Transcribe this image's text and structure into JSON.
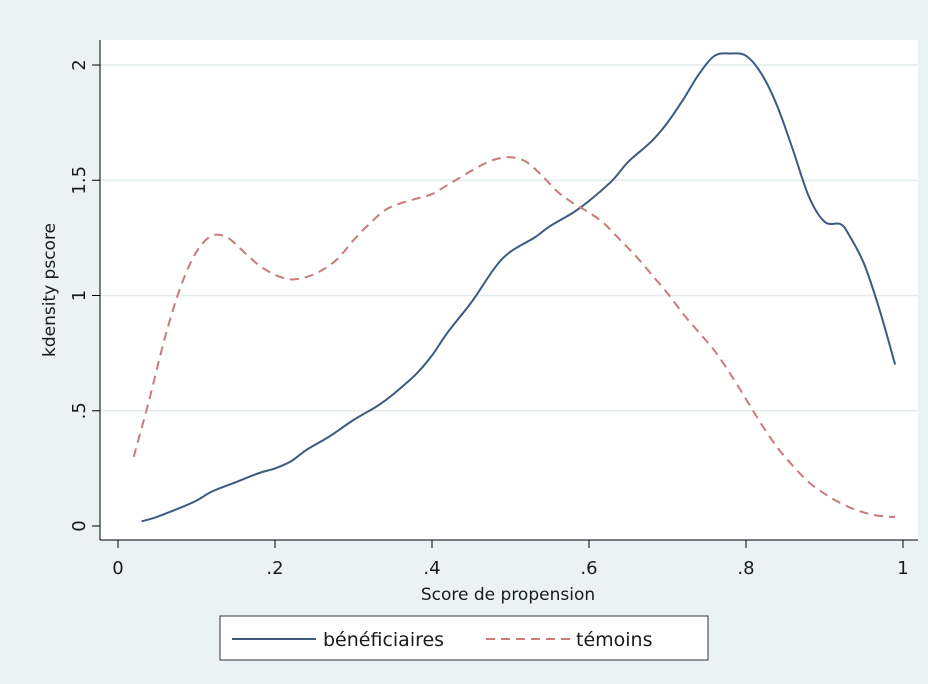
{
  "chart_data": {
    "type": "line",
    "xlabel": "Score de propension",
    "ylabel": "kdensity pscore",
    "xlim": [
      0,
      1
    ],
    "ylim": [
      0,
      2.1
    ],
    "xticks": [
      0,
      0.2,
      0.4,
      0.6,
      0.8,
      1
    ],
    "xtick_labels": [
      "0",
      ".2",
      ".4",
      ".6",
      ".8",
      "1"
    ],
    "yticks": [
      0,
      0.5,
      1,
      1.5,
      2
    ],
    "ytick_labels": [
      "0",
      ".5",
      "1",
      "1.5",
      "2"
    ],
    "grid": true,
    "legend_position": "bottom",
    "series": [
      {
        "name": "bénéficiaires",
        "color": "#3d5a80",
        "style": "solid",
        "x": [
          0.03,
          0.05,
          0.08,
          0.1,
          0.12,
          0.15,
          0.18,
          0.2,
          0.22,
          0.24,
          0.27,
          0.3,
          0.33,
          0.35,
          0.38,
          0.4,
          0.42,
          0.45,
          0.48,
          0.5,
          0.53,
          0.55,
          0.58,
          0.6,
          0.63,
          0.65,
          0.68,
          0.7,
          0.72,
          0.74,
          0.76,
          0.78,
          0.8,
          0.82,
          0.84,
          0.86,
          0.88,
          0.9,
          0.92,
          0.93,
          0.95,
          0.97,
          0.99
        ],
        "y": [
          0.02,
          0.04,
          0.08,
          0.11,
          0.15,
          0.19,
          0.23,
          0.25,
          0.28,
          0.33,
          0.39,
          0.46,
          0.52,
          0.57,
          0.66,
          0.74,
          0.84,
          0.97,
          1.12,
          1.19,
          1.25,
          1.3,
          1.36,
          1.41,
          1.5,
          1.58,
          1.67,
          1.75,
          1.85,
          1.96,
          2.04,
          2.05,
          2.04,
          1.96,
          1.82,
          1.63,
          1.43,
          1.32,
          1.31,
          1.27,
          1.14,
          0.94,
          0.7
        ]
      },
      {
        "name": "témoins",
        "color": "#c97a7a",
        "style": "dashed",
        "x": [
          0.02,
          0.04,
          0.06,
          0.08,
          0.1,
          0.12,
          0.14,
          0.16,
          0.18,
          0.2,
          0.22,
          0.24,
          0.26,
          0.28,
          0.3,
          0.32,
          0.34,
          0.36,
          0.38,
          0.4,
          0.42,
          0.44,
          0.46,
          0.48,
          0.5,
          0.52,
          0.54,
          0.56,
          0.58,
          0.6,
          0.62,
          0.64,
          0.66,
          0.68,
          0.7,
          0.72,
          0.74,
          0.76,
          0.78,
          0.8,
          0.82,
          0.84,
          0.86,
          0.88,
          0.9,
          0.92,
          0.94,
          0.96,
          0.98,
          0.99
        ],
        "y": [
          0.3,
          0.55,
          0.82,
          1.04,
          1.19,
          1.26,
          1.25,
          1.19,
          1.13,
          1.09,
          1.07,
          1.08,
          1.11,
          1.16,
          1.24,
          1.31,
          1.37,
          1.4,
          1.42,
          1.44,
          1.48,
          1.52,
          1.56,
          1.59,
          1.6,
          1.58,
          1.52,
          1.45,
          1.4,
          1.36,
          1.31,
          1.24,
          1.17,
          1.09,
          1.01,
          0.92,
          0.84,
          0.76,
          0.66,
          0.55,
          0.44,
          0.34,
          0.26,
          0.19,
          0.14,
          0.1,
          0.07,
          0.05,
          0.04,
          0.04
        ]
      }
    ]
  }
}
